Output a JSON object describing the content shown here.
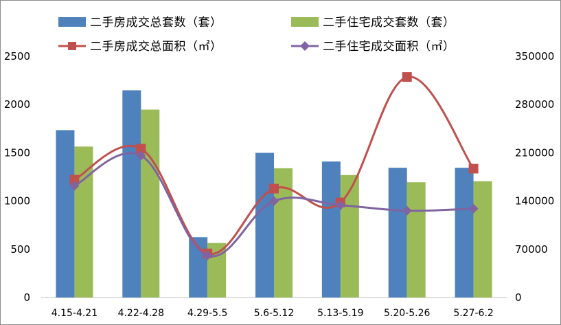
{
  "chart_data": {
    "type": "bar",
    "categories": [
      "4.15-4.21",
      "4.22-4.28",
      "4.29-5.5",
      "5.6-5.12",
      "5.13-5.19",
      "5.20-5.26",
      "5.27-6.2"
    ],
    "series": [
      {
        "name": "二手房成交总套数（套）",
        "type": "bar",
        "axis": "left",
        "color": "#4f81bd",
        "values": [
          1735,
          2148,
          625,
          1500,
          1410,
          1345,
          1345
        ]
      },
      {
        "name": "二手住宅成交套数（套）",
        "type": "bar",
        "axis": "left",
        "color": "#9bbb59",
        "values": [
          1565,
          1948,
          565,
          1340,
          1270,
          1195,
          1205
        ]
      },
      {
        "name": "二手房成交总面积（㎡）",
        "type": "line",
        "axis": "right",
        "color": "#c0504d",
        "marker": "square",
        "values": [
          171000,
          216000,
          64000,
          158000,
          138000,
          320000,
          187000
        ]
      },
      {
        "name": "二手住宅成交面积（㎡）",
        "type": "line",
        "axis": "right",
        "color": "#8064a2",
        "marker": "diamond",
        "values": [
          162000,
          206000,
          61000,
          140000,
          134000,
          126000,
          129000
        ]
      }
    ],
    "y_left": {
      "range": [
        0,
        2500
      ],
      "ticks": [
        "0",
        "500",
        "1000",
        "1500",
        "2000",
        "2500"
      ]
    },
    "y_right": {
      "range": [
        0,
        350000
      ],
      "ticks": [
        "0",
        "70000",
        "140000",
        "210000",
        "280000",
        "350000"
      ]
    },
    "grid": false,
    "legend_position": "top",
    "title": "",
    "xlabel": "",
    "ylabel": ""
  }
}
